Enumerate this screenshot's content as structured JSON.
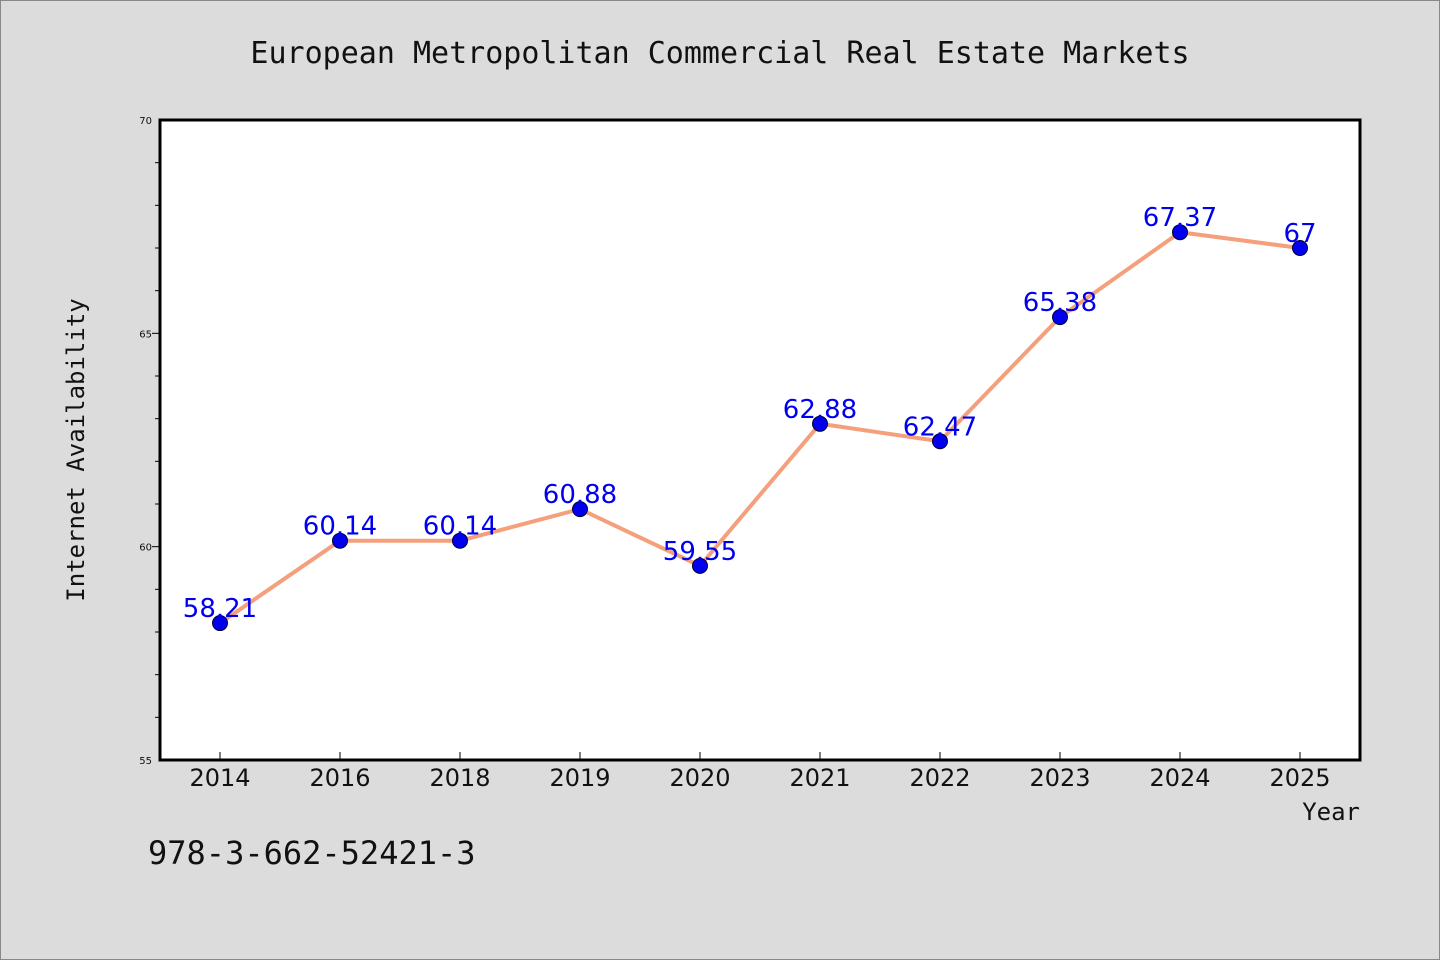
{
  "chart_data": {
    "type": "line",
    "title": "European Metropolitan Commercial Real Estate Markets",
    "xlabel": "Year",
    "ylabel": "Internet Availability",
    "categories": [
      "2014",
      "2016",
      "2018",
      "2019",
      "2020",
      "2021",
      "2022",
      "2023",
      "2024",
      "2025"
    ],
    "values": [
      58.21,
      60.14,
      60.14,
      60.88,
      59.55,
      62.88,
      62.47,
      65.38,
      67.37,
      67
    ],
    "data_labels": [
      "58.21",
      "60.14",
      "60.14",
      "60.88",
      "59.55",
      "62.88",
      "62.47",
      "65.38",
      "67.37",
      "67"
    ],
    "ylim": [
      55,
      70
    ],
    "yticks": [
      55,
      60,
      65,
      70
    ],
    "grid": false,
    "legend": "none"
  },
  "footnote": "978-3-662-52421-3",
  "colors": {
    "background": "#dcdcdc",
    "plot_background": "#ffffff",
    "line": "#f4a07c",
    "marker": "#0000ee",
    "data_label": "#0000ee",
    "text": "#111111"
  }
}
